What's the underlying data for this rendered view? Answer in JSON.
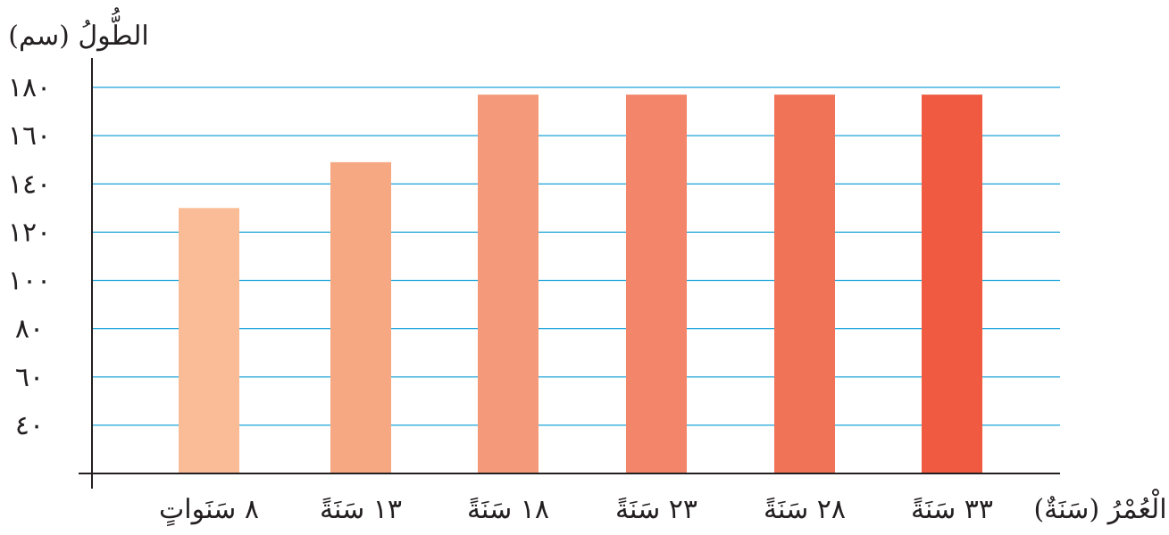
{
  "chart_data": {
    "type": "bar",
    "title": "",
    "ylabel": "الطُّولُ (سم)",
    "xlabel": "الْعُمْرُ (سَنَةٌ)",
    "ylim": [
      20,
      180
    ],
    "yticks": [
      "٤٠",
      "٦٠",
      "٨٠",
      "١٠٠",
      "١٢٠",
      "١٤٠",
      "١٦٠",
      "١٨٠"
    ],
    "ytick_values": [
      40,
      60,
      80,
      100,
      120,
      140,
      160,
      180
    ],
    "categories": [
      "٨ سَنَواتٍ",
      "١٣ سَنَةً",
      "١٨ سَنَةً",
      "٢٣ سَنَةً",
      "٢٨ سَنَةً",
      "٣٣ سَنَةً"
    ],
    "values": [
      130,
      149,
      177,
      177,
      177,
      177
    ],
    "bar_colors": [
      "#f9bc96",
      "#f6a882",
      "#f49a7a",
      "#f3856a",
      "#f17357",
      "#ef5a40"
    ],
    "grid": true,
    "grid_color": "#1aa3d9",
    "axis_color": "#231f20"
  }
}
